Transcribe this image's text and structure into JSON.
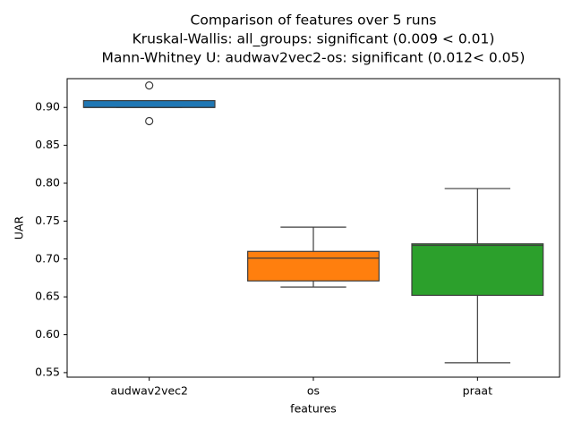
{
  "chart_data": {
    "type": "box",
    "title": [
      "Comparison of features over 5 runs",
      "Kruskal-Wallis: all_groups: significant (0.009 < 0.01)",
      "Mann-Whitney U: audwav2vec2-os: significant (0.012< 0.05)"
    ],
    "x_label": "features",
    "y_label": "UAR",
    "categories": [
      "audwav2vec2",
      "os",
      "praat"
    ],
    "colors": [
      "#1f77b4",
      "#ff7f0e",
      "#2ca02c"
    ],
    "boxes": [
      {
        "whislo": 0.9,
        "q1": 0.9,
        "med": 0.9,
        "q3": 0.909,
        "whishi": 0.909,
        "fliers": [
          0.929,
          0.882
        ]
      },
      {
        "whislo": 0.663,
        "q1": 0.671,
        "med": 0.701,
        "q3": 0.71,
        "whishi": 0.742,
        "fliers": []
      },
      {
        "whislo": 0.563,
        "q1": 0.652,
        "med": 0.718,
        "q3": 0.72,
        "whishi": 0.793,
        "fliers": []
      }
    ],
    "ylim": [
      0.544,
      0.938
    ],
    "yticks": [
      {
        "value": 0.55,
        "label": "0.55"
      },
      {
        "value": 0.6,
        "label": "0.60"
      },
      {
        "value": 0.65,
        "label": "0.65"
      },
      {
        "value": 0.7,
        "label": "0.70"
      },
      {
        "value": 0.75,
        "label": "0.75"
      },
      {
        "value": 0.8,
        "label": "0.80"
      },
      {
        "value": 0.85,
        "label": "0.85"
      },
      {
        "value": 0.9,
        "label": "0.90"
      }
    ]
  }
}
